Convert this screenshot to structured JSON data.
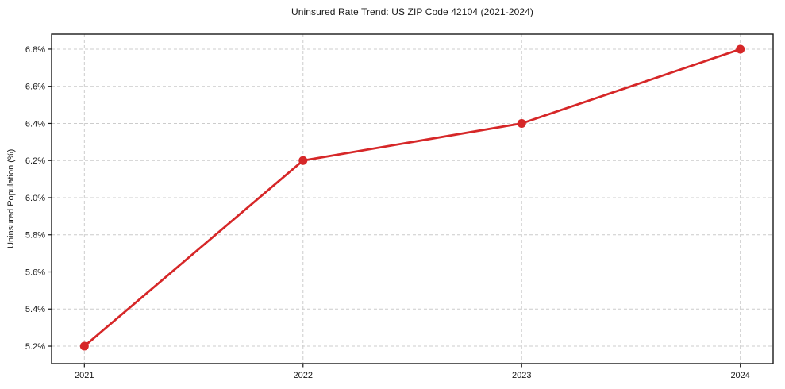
{
  "figure": {
    "background": "#ffffff"
  },
  "chart_data": {
    "type": "line",
    "title": "Uninsured Rate Trend: US ZIP Code 42104 (2021-2024)",
    "xlabel": "",
    "ylabel": "Uninsured Population (%)",
    "x": [
      2021,
      2022,
      2023,
      2024
    ],
    "x_tick_labels": [
      "2021",
      "2022",
      "2023",
      "2024"
    ],
    "series": [
      {
        "name": "uninsured-rate",
        "values": [
          5.2,
          6.2,
          6.4,
          6.8
        ],
        "color": "#d62728",
        "marker": "circle",
        "line_width": 2.8,
        "marker_radius": 5.5
      }
    ],
    "yticks": [
      5.2,
      5.4,
      5.6,
      5.8,
      6.0,
      6.2,
      6.4,
      6.6,
      6.8
    ],
    "ytick_labels": [
      "5.2%",
      "5.4%",
      "5.6%",
      "5.8%",
      "6.0%",
      "6.2%",
      "6.4%",
      "6.6%",
      "6.8%"
    ],
    "xlim": [
      2020.85,
      2024.15
    ],
    "ylim": [
      5.106,
      6.881
    ],
    "grid": "dashed",
    "grid_color": "#cccccc",
    "axis_color": "#1a1a1a",
    "text_color": "#1a1a1a",
    "legend": "none"
  }
}
